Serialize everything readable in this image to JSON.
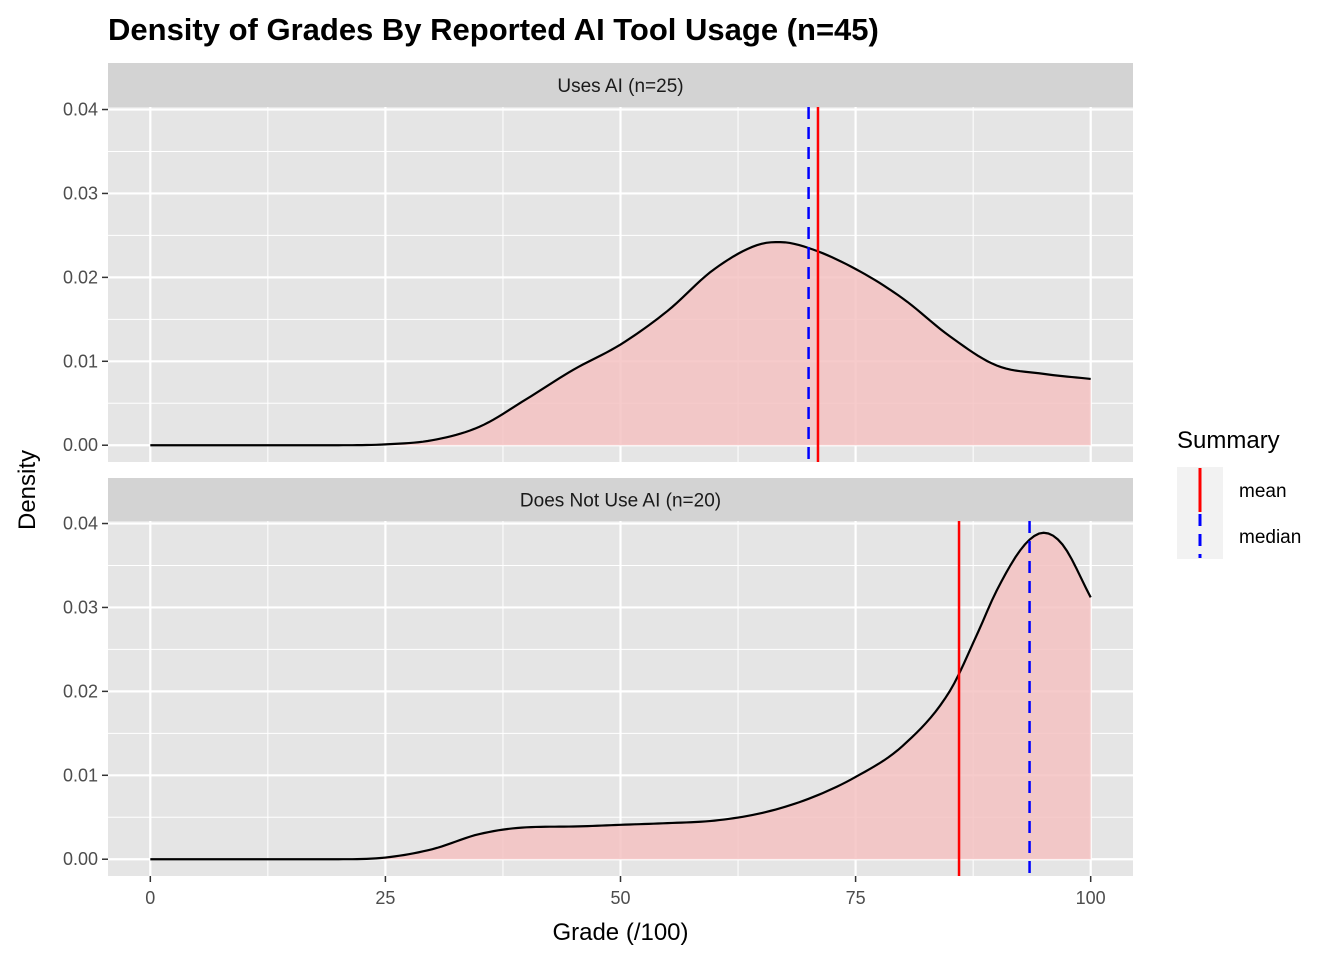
{
  "chart_data": {
    "type": "area",
    "title": "Density of Grades By Reported AI Tool Usage (n=45)",
    "xlabel": "Grade (/100)",
    "ylabel": "Density",
    "xlim": [
      0,
      100
    ],
    "ylim": [
      0,
      0.04
    ],
    "x_ticks": [
      "0",
      "25",
      "50",
      "75",
      "100"
    ],
    "y_ticks": [
      "0.00",
      "0.01",
      "0.02",
      "0.03",
      "0.04"
    ],
    "x_tick_values": [
      0,
      25,
      50,
      75,
      100
    ],
    "y_tick_values": [
      0,
      0.01,
      0.02,
      0.03,
      0.04
    ],
    "grid": true,
    "colors": {
      "fill": "#F4C2C2",
      "curve": "#000000",
      "mean": "#FF0000",
      "median": "#0000FF",
      "panel_bg": "#E5E5E5",
      "strip_bg": "#D3D3D3",
      "grid": "#FFFFFF"
    },
    "legend": {
      "title": "Summary",
      "position": "right",
      "items": [
        {
          "label": "mean",
          "color": "#FF0000",
          "linetype": "solid"
        },
        {
          "label": "median",
          "color": "#0000FF",
          "linetype": "dashed"
        }
      ]
    },
    "panels": [
      {
        "label": "Uses AI (n=25)",
        "mean": 71,
        "median": 70,
        "x": [
          0,
          10,
          20,
          25,
          30,
          35,
          40,
          45,
          50,
          55,
          60,
          65,
          67,
          70,
          75,
          80,
          85,
          90,
          95,
          100
        ],
        "y": [
          0.0,
          0.0,
          0.0,
          0.0001,
          0.0006,
          0.0022,
          0.0055,
          0.009,
          0.012,
          0.016,
          0.021,
          0.024,
          0.0242,
          0.0235,
          0.021,
          0.0175,
          0.013,
          0.0095,
          0.0085,
          0.0079
        ]
      },
      {
        "label": "Does Not Use AI (n=20)",
        "mean": 86,
        "median": 93.5,
        "x": [
          0,
          10,
          20,
          25,
          30,
          35,
          40,
          45,
          50,
          55,
          60,
          65,
          70,
          75,
          80,
          85,
          88,
          90,
          93,
          95,
          97,
          100
        ],
        "y": [
          0.0,
          0.0,
          0.0,
          0.0002,
          0.0012,
          0.003,
          0.0038,
          0.0039,
          0.0041,
          0.0043,
          0.0046,
          0.0055,
          0.0072,
          0.0098,
          0.0135,
          0.02,
          0.027,
          0.032,
          0.0375,
          0.0389,
          0.0375,
          0.0312
        ]
      }
    ]
  }
}
